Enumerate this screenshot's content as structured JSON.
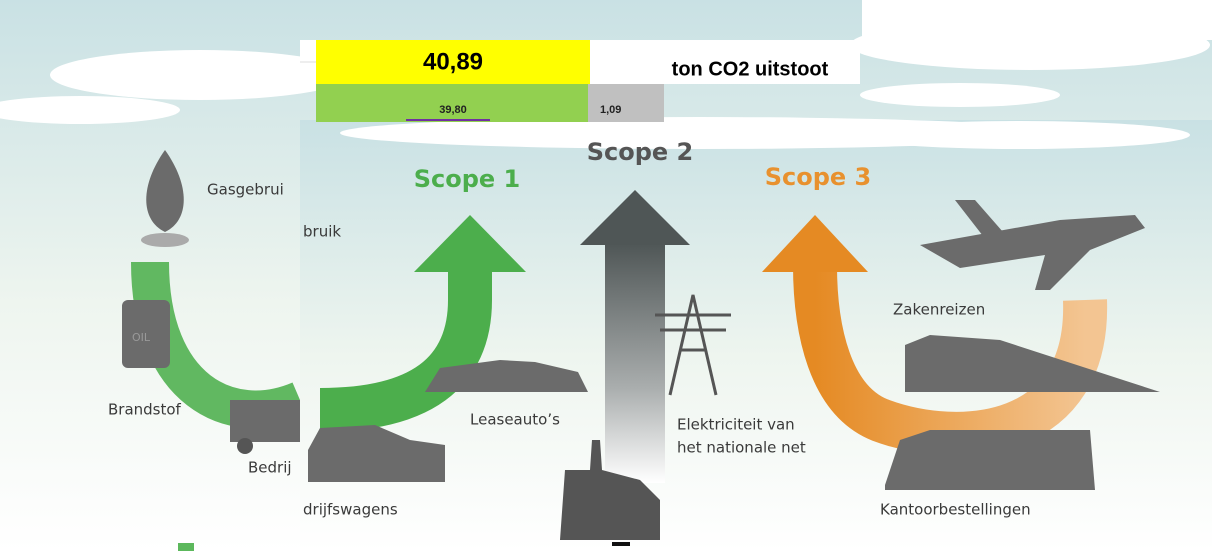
{
  "spreadsheet": {
    "total": "40,89",
    "unit": "ton CO2 uitstoot",
    "scope1_total": "39,80",
    "other_total": "1,09"
  },
  "left_panel": {
    "labels": [
      "Gasgebrui",
      "bruik",
      "Brandstof",
      "Bedrij"
    ]
  },
  "scopes": [
    {
      "title": "Scope 1",
      "labels": [
        "Leaseauto’s",
        "drijfswagens"
      ]
    },
    {
      "title": "Scope 2",
      "labels": [
        "Elektriciteit van",
        "het nationale net"
      ]
    },
    {
      "title": "Scope 3",
      "labels": [
        "Zakenreizen",
        "Kantoorbestellingen"
      ]
    }
  ]
}
